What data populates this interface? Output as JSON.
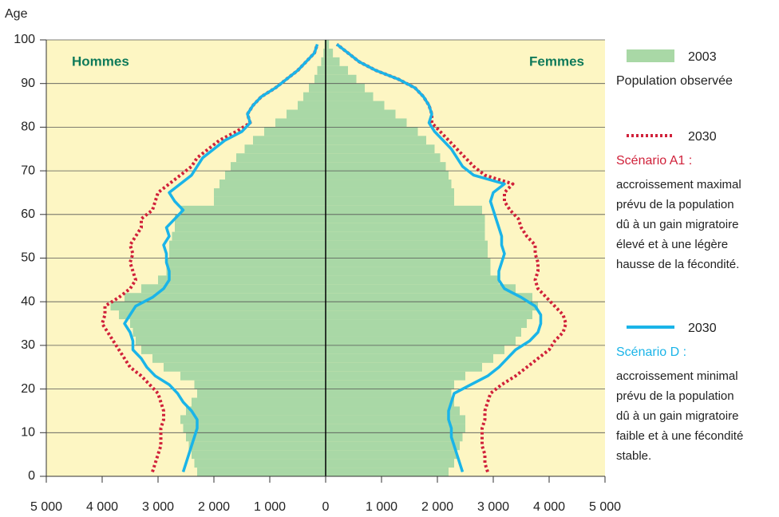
{
  "chart_data": {
    "type": "pyramid",
    "y_label": "Age",
    "left_label": "Hommes",
    "right_label": "Femmes",
    "ages": [
      0,
      2,
      4,
      6,
      8,
      10,
      12,
      14,
      16,
      18,
      20,
      22,
      24,
      26,
      28,
      30,
      32,
      34,
      36,
      38,
      40,
      42,
      44,
      46,
      48,
      50,
      52,
      54,
      56,
      58,
      60,
      62,
      64,
      66,
      68,
      70,
      72,
      74,
      76,
      78,
      80,
      82,
      84,
      86,
      88,
      90,
      92,
      94,
      96,
      98
    ],
    "age_step": 2,
    "xlim": [
      0,
      5000
    ],
    "xticks": [
      0,
      {
        "value": 1000,
        "label": "1 000"
      },
      {
        "value": 2000,
        "label": "2 000"
      },
      {
        "value": 3000,
        "label": "3 000"
      },
      {
        "value": 4000,
        "label": "4 000"
      },
      {
        "value": 5000,
        "label": "5 000"
      }
    ],
    "ylim": [
      0,
      100
    ],
    "yticks": [
      0,
      10,
      20,
      30,
      40,
      50,
      60,
      70,
      80,
      90,
      100
    ],
    "grid": true,
    "background": "#fdf6c3",
    "series": [
      {
        "name": "2003",
        "subtitle": "Population observée",
        "style": "bars",
        "color": "#a9d8a6",
        "values_hommes": [
          2300,
          2350,
          2400,
          2450,
          2500,
          2550,
          2600,
          2500,
          2400,
          2300,
          2350,
          2600,
          2900,
          3100,
          3300,
          3400,
          3450,
          3500,
          3700,
          3850,
          3600,
          3300,
          3000,
          2850,
          2850,
          2800,
          2800,
          2750,
          2700,
          2700,
          2600,
          2000,
          2000,
          1900,
          1800,
          1700,
          1600,
          1450,
          1300,
          1100,
          900,
          700,
          500,
          400,
          300,
          200,
          150,
          80,
          40,
          20
        ],
        "values_femmes": [
          2200,
          2300,
          2350,
          2400,
          2450,
          2500,
          2500,
          2400,
          2300,
          2250,
          2300,
          2500,
          2800,
          3000,
          3200,
          3400,
          3500,
          3600,
          3700,
          3800,
          3700,
          3400,
          3100,
          2950,
          2950,
          2900,
          2900,
          2850,
          2850,
          2850,
          2800,
          2300,
          2300,
          2250,
          2200,
          2150,
          2050,
          1950,
          1800,
          1650,
          1450,
          1250,
          1050,
          850,
          700,
          550,
          400,
          250,
          130,
          60
        ]
      },
      {
        "name": "2030",
        "subtitle": "Scénario A1 :",
        "description": [
          "accroissement maximal",
          "prévu de la population",
          "dû à un gain migratoire",
          "élevé et à une légère",
          "hausse de la fécondité."
        ],
        "style": "dotted",
        "color": "#d0213a",
        "values_hommes": [
          3100,
          3050,
          3000,
          2950,
          2950,
          2950,
          2900,
          2900,
          2950,
          3000,
          3150,
          3300,
          3500,
          3600,
          3700,
          3800,
          3900,
          4000,
          3950,
          3950,
          3700,
          3500,
          3400,
          3450,
          3500,
          3450,
          3500,
          3400,
          3300,
          3300,
          3100,
          3050,
          3000,
          2800,
          2600,
          2400,
          2300,
          2100,
          1900,
          1600,
          1350,
          1400,
          1300,
          1150,
          900,
          700,
          500,
          350,
          200,
          150
        ],
        "values_femmes": [
          2900,
          2850,
          2850,
          2800,
          2800,
          2800,
          2850,
          2850,
          2900,
          2950,
          3150,
          3400,
          3600,
          3800,
          4000,
          4100,
          4250,
          4300,
          4250,
          4100,
          3950,
          3800,
          3750,
          3800,
          3800,
          3750,
          3750,
          3600,
          3500,
          3450,
          3300,
          3200,
          3200,
          3350,
          2850,
          2650,
          2500,
          2350,
          2200,
          2050,
          1900,
          1900,
          1850,
          1750,
          1600,
          1300,
          900,
          600,
          400,
          200
        ]
      },
      {
        "name": "2030",
        "subtitle": "Scénario D :",
        "description": [
          "accroissement minimal",
          "prévu de la population",
          "dû à un gain migratoire",
          "faible et à une fécondité",
          "stable."
        ],
        "style": "solid",
        "color": "#1ab4e8",
        "values_hommes": [
          2550,
          2500,
          2450,
          2400,
          2350,
          2300,
          2300,
          2400,
          2550,
          2650,
          2800,
          3050,
          3200,
          3300,
          3450,
          3450,
          3500,
          3600,
          3500,
          3400,
          3100,
          2900,
          2800,
          2800,
          2850,
          2850,
          2900,
          2800,
          2850,
          2700,
          2550,
          2700,
          2800,
          2600,
          2400,
          2300,
          2200,
          2000,
          1800,
          1500,
          1350,
          1400,
          1300,
          1150,
          900,
          700,
          500,
          350,
          200,
          150
        ],
        "values_femmes": [
          2450,
          2400,
          2350,
          2300,
          2250,
          2250,
          2200,
          2200,
          2250,
          2300,
          2600,
          2900,
          3100,
          3250,
          3400,
          3650,
          3800,
          3850,
          3850,
          3750,
          3500,
          3200,
          3100,
          3100,
          3150,
          3200,
          3150,
          3150,
          3100,
          3050,
          3000,
          2950,
          3000,
          3200,
          2650,
          2450,
          2350,
          2250,
          2100,
          1950,
          1850,
          1900,
          1850,
          1750,
          1600,
          1300,
          900,
          600,
          400,
          200
        ]
      }
    ]
  }
}
